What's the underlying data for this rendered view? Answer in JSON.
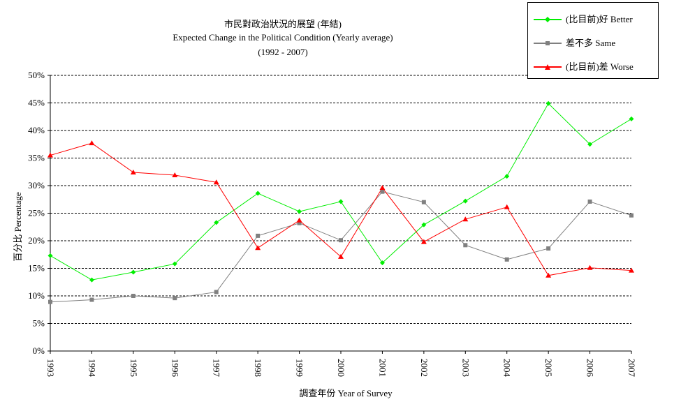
{
  "title": {
    "line1": "市民對政治狀況的展望 (年結)",
    "line2": "Expected Change in the Political Condition  (Yearly average)",
    "line3": "(1992 - 2007)"
  },
  "legend": {
    "better": "(比目前)好 Better",
    "same": "差不多 Same",
    "worse": "(比目前)差 Worse"
  },
  "colors": {
    "better": "#00ee00",
    "same": "#808080",
    "worse": "#ff0000"
  },
  "chart_data": {
    "type": "line",
    "xlabel": "調查年份 Year of Survey",
    "ylabel": "百分比 Percentage",
    "ylim": [
      0,
      50
    ],
    "y_ticks": [
      "0%",
      "5%",
      "10%",
      "15%",
      "20%",
      "25%",
      "30%",
      "35%",
      "40%",
      "45%",
      "50%"
    ],
    "grid": "horizontal dashed",
    "legend_position": "top-right",
    "categories": [
      "1993",
      "1994",
      "1995",
      "1996",
      "1997",
      "1998",
      "1999",
      "2000",
      "2001",
      "2002",
      "2003",
      "2004",
      "2005",
      "2006",
      "2007"
    ],
    "series": [
      {
        "name": "(比目前)好 Better",
        "color": "#00ee00",
        "marker": "diamond",
        "values": [
          17.3,
          12.9,
          14.3,
          15.8,
          23.3,
          28.6,
          25.3,
          27.1,
          16.0,
          22.9,
          27.2,
          31.7,
          44.9,
          37.5,
          42.1
        ]
      },
      {
        "name": "差不多 Same",
        "color": "#808080",
        "marker": "square",
        "values": [
          8.9,
          9.3,
          10.0,
          9.6,
          10.7,
          20.9,
          23.2,
          20.1,
          28.9,
          27.0,
          19.2,
          16.6,
          18.6,
          27.1,
          24.6
        ]
      },
      {
        "name": "(比目前)差 Worse",
        "color": "#ff0000",
        "marker": "triangle",
        "values": [
          35.5,
          37.7,
          32.4,
          31.9,
          30.6,
          18.7,
          23.7,
          17.1,
          29.6,
          19.8,
          23.9,
          26.1,
          13.7,
          15.1,
          14.6
        ]
      }
    ]
  }
}
